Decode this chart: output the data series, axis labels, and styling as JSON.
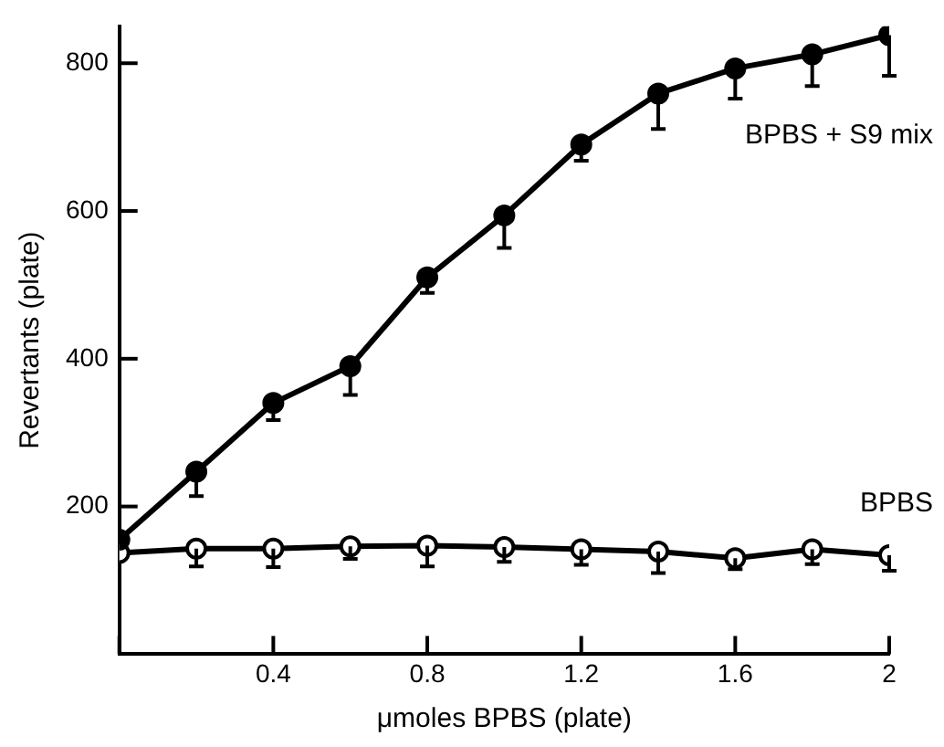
{
  "chart_data": {
    "type": "line",
    "xlabel": "μmoles BPBS (plate)",
    "ylabel": "Revertants (plate)",
    "x": [
      0,
      0.2,
      0.4,
      0.6,
      0.8,
      1.0,
      1.2,
      1.4,
      1.6,
      1.8,
      2.0
    ],
    "series": [
      {
        "name": "BPBS + S9 mix",
        "color": "#000000",
        "values": [
          155,
          247,
          340,
          390,
          510,
          594,
          690,
          759,
          793,
          812,
          838
        ],
        "errors": [
          null,
          [
            214,
            247
          ],
          [
            317,
            340
          ],
          [
            351,
            390
          ],
          [
            489,
            510
          ],
          [
            550,
            594
          ],
          [
            668,
            690
          ],
          [
            711,
            759
          ],
          [
            752,
            793
          ],
          [
            769,
            812
          ],
          [
            783,
            838
          ]
        ]
      },
      {
        "name": "BPBS",
        "color": "#000000",
        "values": [
          137,
          143,
          143,
          146,
          147,
          145,
          142,
          139,
          130,
          142,
          134
        ],
        "errors": [
          null,
          [
            119,
            143
          ],
          [
            118,
            143
          ],
          [
            129,
            146
          ],
          [
            119,
            147
          ],
          [
            125,
            145
          ],
          [
            121,
            142
          ],
          [
            110,
            139
          ],
          [
            115,
            130
          ],
          [
            122,
            142
          ],
          [
            113,
            134
          ]
        ]
      }
    ],
    "xlim": [
      0,
      2
    ],
    "xticks": [
      {
        "value": 0,
        "label": null
      },
      0.4,
      0.8,
      1.2,
      1.6,
      2
    ],
    "ylim": [
      0,
      850
    ],
    "yticks": [
      200,
      400,
      600,
      800
    ],
    "grid": false,
    "legend": false,
    "marker": "circle",
    "line_style": "solid"
  }
}
